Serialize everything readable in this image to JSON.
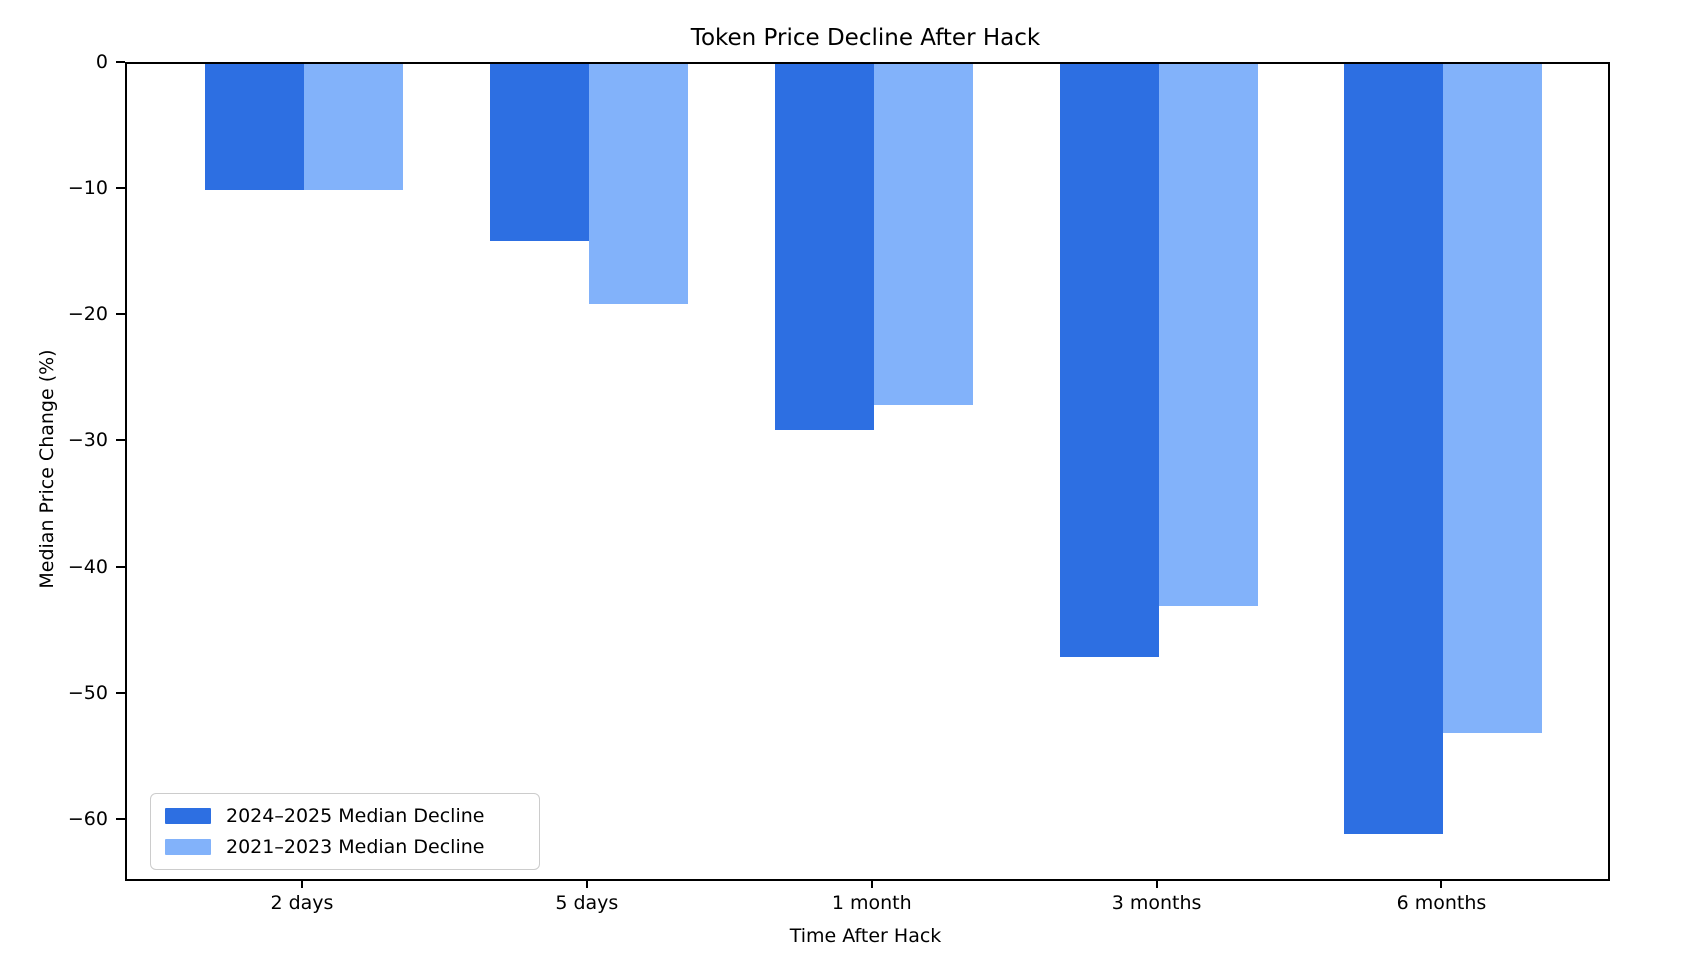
{
  "title": "Token Price Decline After Hack",
  "chart_data": {
    "type": "bar",
    "title": "Token Price Decline After Hack",
    "xlabel": "Time After Hack",
    "ylabel": "Median Price Change (%)",
    "categories": [
      "2 days",
      "5 days",
      "1 month",
      "3 months",
      "6 months"
    ],
    "series": [
      {
        "name": "2024–2025 Median Decline",
        "color": "#2d6fe2",
        "values": [
          -10,
          -14,
          -29,
          -47,
          -61
        ]
      },
      {
        "name": "2021–2023 Median Decline",
        "color": "#82b2fa",
        "values": [
          -10,
          -19,
          -27,
          -43,
          -53
        ]
      }
    ],
    "yticks": [
      0,
      -10,
      -20,
      -30,
      -40,
      -50,
      -60
    ],
    "ytick_labels": [
      "0",
      "−10",
      "−20",
      "−30",
      "−40",
      "−50",
      "−60"
    ],
    "ylim": [
      -64.6,
      0
    ],
    "xlim_fraction_first_center": 0.1195,
    "xlim_fraction_step": 0.19235,
    "legend_position": "lower left",
    "grid": false,
    "spine_color": "#000000",
    "background": "#ffffff"
  }
}
